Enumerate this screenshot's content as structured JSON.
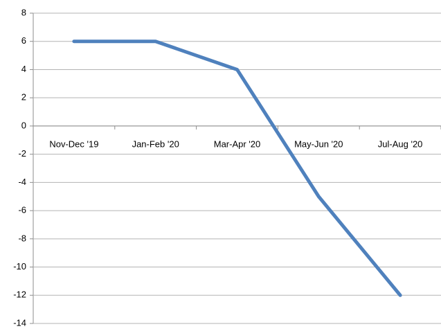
{
  "chart_data": {
    "type": "line",
    "categories": [
      "Nov-Dec '19",
      "Jan-Feb '20",
      "Mar-Apr '20",
      "May-Jun '20",
      "Jul-Aug '20"
    ],
    "series": [
      {
        "color": "#4f81bd",
        "values": [
          6,
          6,
          4,
          -5,
          -12
        ]
      }
    ],
    "ylim": [
      -14,
      8
    ],
    "yticks": [
      -14,
      -12,
      -10,
      -8,
      -6,
      -4,
      -2,
      0,
      2,
      4,
      6,
      8
    ],
    "grid": true
  }
}
